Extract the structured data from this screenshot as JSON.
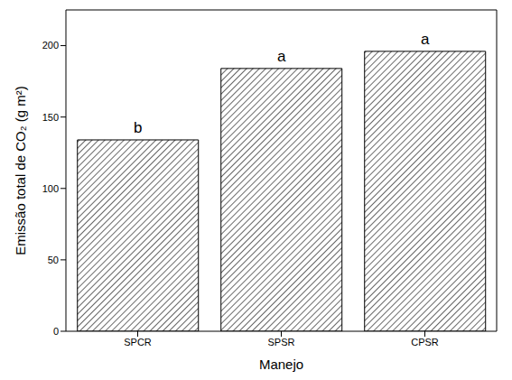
{
  "chart_data": {
    "type": "bar",
    "categories": [
      "SPCR",
      "SPSR",
      "CPSR"
    ],
    "values": [
      134,
      184,
      196
    ],
    "annotations": [
      "b",
      "a",
      "a"
    ],
    "color": "#000000",
    "x_label": "Manejo",
    "y_label": "Emissão total de CO₂ (g m²)",
    "ylim": [
      0,
      225
    ],
    "yticks": [
      0,
      50,
      100,
      150,
      200
    ],
    "grid": false
  }
}
